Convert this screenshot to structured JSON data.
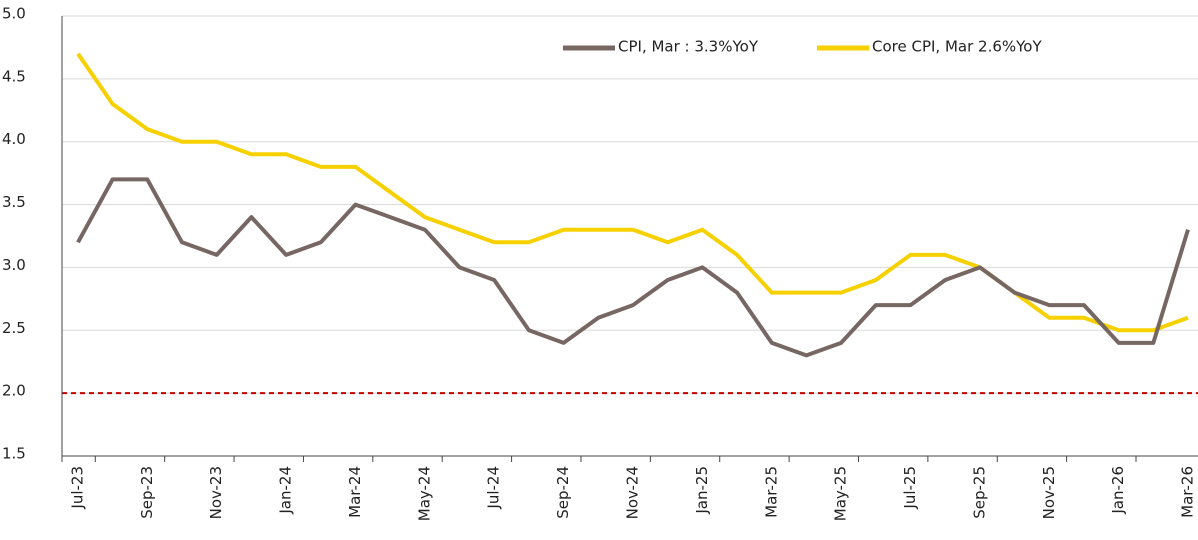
{
  "chart_data": {
    "type": "line",
    "categories": [
      "Jul-23",
      null,
      "Sep-23",
      null,
      "Nov-23",
      null,
      "Jan-24",
      null,
      "Mar-24",
      null,
      "May-24",
      null,
      "Jul-24",
      null,
      "Sep-24",
      null,
      "Nov-24",
      null,
      "Jan-25",
      null,
      "Mar-25",
      null,
      "May-25",
      null,
      "Jul-25",
      null,
      "Sep-25",
      null,
      "Nov-25",
      null,
      "Jan-26",
      null,
      "Mar-26"
    ],
    "series": [
      {
        "name": "CPI, Mar : 3.3%YoY",
        "color": "#776763",
        "values": [
          3.2,
          3.7,
          3.7,
          3.2,
          3.1,
          3.4,
          3.1,
          3.2,
          3.5,
          3.4,
          3.3,
          3.0,
          2.9,
          2.5,
          2.4,
          2.6,
          2.7,
          2.9,
          3.0,
          2.8,
          2.4,
          2.3,
          2.4,
          2.7,
          2.7,
          2.9,
          3.0,
          2.8,
          2.7,
          2.7,
          2.4,
          2.4,
          3.3
        ]
      },
      {
        "name": "Core CPI, Mar 2.6%YoY",
        "color": "#f7d000",
        "values": [
          4.7,
          4.3,
          4.1,
          4.0,
          4.0,
          3.9,
          3.9,
          3.8,
          3.8,
          3.6,
          3.4,
          3.3,
          3.2,
          3.2,
          3.3,
          3.3,
          3.3,
          3.2,
          3.3,
          3.1,
          2.8,
          2.8,
          2.8,
          2.9,
          3.1,
          3.1,
          3.0,
          2.8,
          2.6,
          2.6,
          2.5,
          2.5,
          2.6
        ]
      }
    ],
    "ylim": [
      1.5,
      5.0
    ],
    "yticks": [
      1.5,
      {
        "value": 2,
        "label": "2.0"
      },
      2.5,
      {
        "value": 3,
        "label": "3.0"
      },
      3.5,
      {
        "value": 4,
        "label": "4.0"
      },
      4.5,
      {
        "value": 5,
        "label": "5.0"
      }
    ],
    "grid": true,
    "hline": {
      "value": 2,
      "color": "#c00000"
    },
    "legend": "top-right"
  }
}
